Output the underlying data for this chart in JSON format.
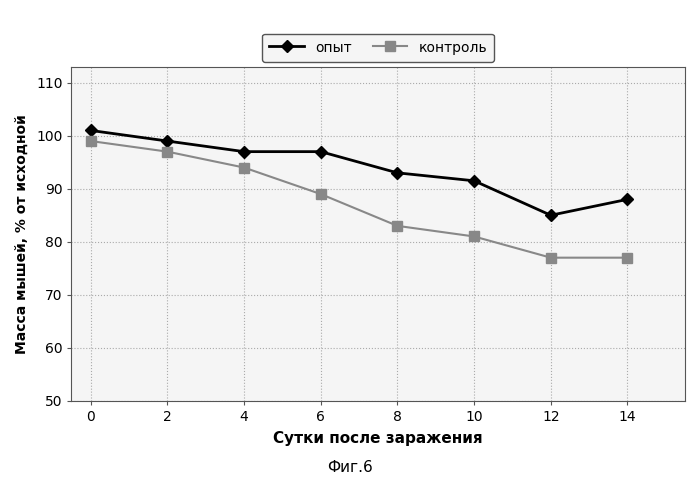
{
  "x": [
    0,
    2,
    4,
    6,
    8,
    10,
    12,
    14
  ],
  "opyt_y": [
    101,
    99,
    97,
    97,
    93,
    91.5,
    85,
    88
  ],
  "kontrol_y": [
    99,
    97,
    94,
    89,
    83,
    81,
    77,
    77
  ],
  "opyt_label": "опыт",
  "kontrol_label": "контроль",
  "xlabel": "Сутки после заражения",
  "ylabel": "Масса мышей, % от исходной",
  "caption": "Фиг.6",
  "ylim": [
    50,
    113
  ],
  "yticks": [
    50,
    60,
    70,
    80,
    90,
    100,
    110
  ],
  "xlim": [
    -0.5,
    15.5
  ],
  "xticks": [
    0,
    2,
    4,
    6,
    8,
    10,
    12,
    14
  ],
  "opyt_color": "#000000",
  "kontrol_color": "#888888",
  "grid_color": "#aaaaaa",
  "bg_color": "#f5f5f5",
  "fig_bg_color": "#ffffff"
}
